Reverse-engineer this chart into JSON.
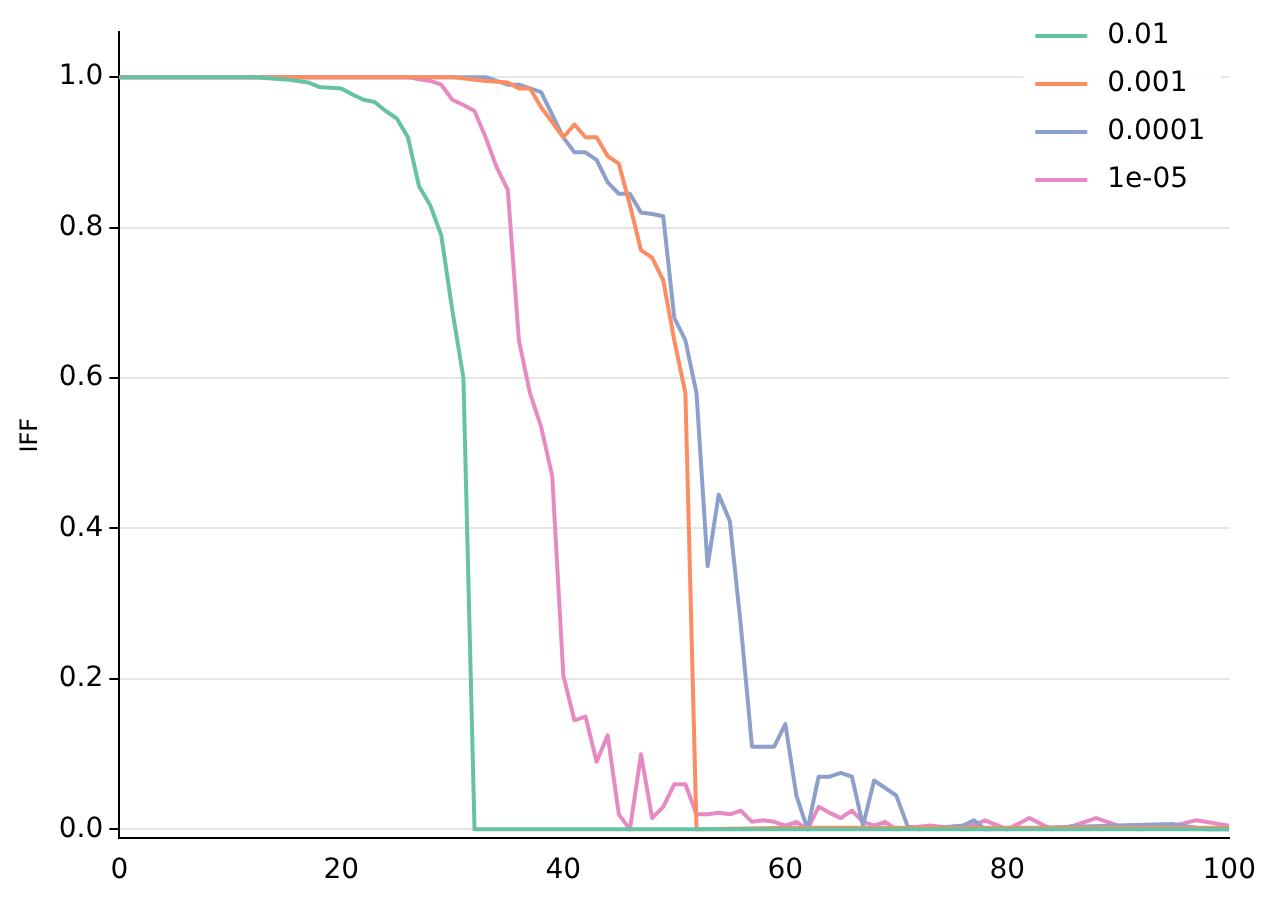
{
  "chart_data": {
    "type": "line",
    "ylabel": "IFF",
    "xlim": [
      0,
      100
    ],
    "ylim": [
      -0.012,
      1.06
    ],
    "xticks": [
      0,
      20,
      40,
      60,
      80,
      100
    ],
    "yticks": [
      {
        "value": 0,
        "label": "0.0"
      },
      {
        "value": 0.2,
        "label": "0.2"
      },
      {
        "value": 0.4,
        "label": "0.4"
      },
      {
        "value": 0.6,
        "label": "0.6"
      },
      {
        "value": 0.8,
        "label": "0.8"
      },
      {
        "value": 1,
        "label": "1.0"
      }
    ],
    "grid": "y",
    "legend": "top right",
    "marker": "none",
    "line_style": "solid",
    "series": [
      {
        "name": "0.01",
        "color": "#66c2a5",
        "x": [
          0,
          12,
          15,
          17,
          18,
          20,
          21,
          22,
          23,
          24,
          25,
          26,
          27,
          28,
          29,
          30,
          31,
          32,
          40,
          60,
          80,
          100
        ],
        "values": [
          1,
          1,
          0.997,
          0.993,
          0.987,
          0.985,
          0.977,
          0.97,
          0.967,
          0.955,
          0.945,
          0.92,
          0.855,
          0.83,
          0.79,
          0.69,
          0.6,
          0,
          0,
          0,
          0,
          0
        ]
      },
      {
        "name": "0.001",
        "color": "#fc8d62",
        "x": [
          0,
          30,
          33,
          35,
          36,
          37,
          38,
          39,
          40,
          41,
          42,
          43,
          44,
          45,
          46,
          47,
          48,
          49,
          50,
          51,
          52,
          60,
          80,
          100
        ],
        "values": [
          1,
          1,
          0.995,
          0.993,
          0.985,
          0.985,
          0.96,
          0.94,
          0.92,
          0.937,
          0.92,
          0.92,
          0.895,
          0.885,
          0.83,
          0.77,
          0.76,
          0.73,
          0.65,
          0.58,
          0,
          0.002,
          0.002,
          0.002
        ]
      },
      {
        "name": "0.0001",
        "color": "#8da0cb",
        "x": [
          0,
          33,
          34,
          35,
          36,
          37,
          38,
          39,
          40,
          41,
          42,
          43,
          44,
          45,
          46,
          47,
          48,
          49,
          50,
          51,
          52,
          53,
          54,
          55,
          56,
          57,
          58,
          59,
          60,
          61,
          62,
          63,
          64,
          65,
          66,
          67,
          68,
          69,
          70,
          71,
          72,
          76,
          77,
          78,
          90,
          95,
          98,
          100
        ],
        "values": [
          1,
          1,
          0.995,
          0.99,
          0.99,
          0.985,
          0.98,
          0.95,
          0.92,
          0.9,
          0.9,
          0.89,
          0.86,
          0.845,
          0.845,
          0.82,
          0.818,
          0.815,
          0.68,
          0.65,
          0.58,
          0.35,
          0.445,
          0.41,
          0.27,
          0.11,
          0.11,
          0.11,
          0.14,
          0.045,
          0,
          0.07,
          0.07,
          0.075,
          0.07,
          0.005,
          0.065,
          0.055,
          0.045,
          0.005,
          0,
          0.005,
          0.012,
          0,
          0.005,
          0.007,
          0,
          0
        ]
      },
      {
        "name": "1e-05",
        "color": "#e78ac3",
        "x": [
          0,
          26,
          27,
          28,
          29,
          30,
          31,
          32,
          33,
          34,
          35,
          36,
          37,
          38,
          39,
          40,
          41,
          42,
          43,
          44,
          45,
          46,
          47,
          48,
          49,
          50,
          51,
          52,
          53,
          54,
          55,
          56,
          57,
          58,
          59,
          60,
          61,
          62,
          63,
          64,
          65,
          66,
          67,
          68,
          69,
          70,
          73,
          76,
          78,
          80,
          82,
          84,
          86,
          88,
          90,
          92,
          95,
          97,
          100
        ],
        "values": [
          1,
          1,
          0.997,
          0.995,
          0.99,
          0.97,
          0.963,
          0.955,
          0.92,
          0.88,
          0.85,
          0.65,
          0.58,
          0.535,
          0.47,
          0.205,
          0.145,
          0.15,
          0.09,
          0.125,
          0.02,
          0,
          0.1,
          0.015,
          0.03,
          0.06,
          0.06,
          0.02,
          0.02,
          0.022,
          0.02,
          0.025,
          0.01,
          0.012,
          0.01,
          0.005,
          0.01,
          0,
          0.03,
          0.022,
          0.015,
          0.025,
          0.01,
          0.005,
          0.01,
          0,
          0.005,
          0,
          0.012,
          0,
          0.015,
          0,
          0.005,
          0.015,
          0.005,
          0,
          0.005,
          0.012,
          0.005
        ]
      }
    ]
  }
}
